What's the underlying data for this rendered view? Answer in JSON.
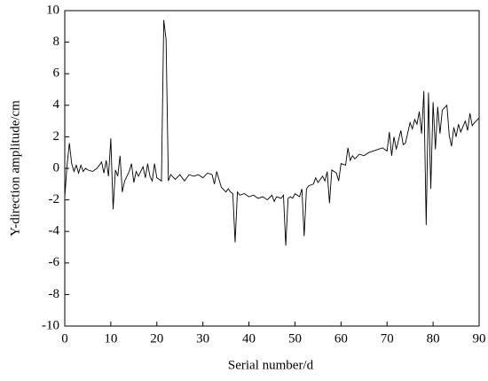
{
  "chart_data": {
    "type": "line",
    "xlabel": "Serial number/d",
    "ylabel": "Y-direction amplitude/cm",
    "color": "#000000",
    "xlim": [
      0,
      90
    ],
    "xticks": [
      0,
      10,
      20,
      30,
      40,
      50,
      60,
      70,
      80,
      90
    ],
    "ylim": [
      -10,
      10
    ],
    "yticks": [
      -10,
      -8,
      -6,
      -4,
      -2,
      0,
      2,
      4,
      6,
      8,
      10
    ],
    "x": [
      0,
      0.5,
      1,
      1.5,
      2,
      2.5,
      3,
      3.5,
      4,
      4.5,
      5,
      6,
      7,
      8,
      8.5,
      9,
      9.5,
      10,
      10.5,
      11,
      11.5,
      12,
      12.5,
      13,
      14,
      14.5,
      15,
      15.5,
      16,
      17,
      17.5,
      18,
      18.5,
      19,
      19.5,
      20,
      21,
      21.5,
      22,
      22.5,
      23,
      24,
      25,
      26,
      27,
      28,
      29,
      30,
      31,
      32,
      32.5,
      33,
      34,
      35,
      35.5,
      36,
      36.5,
      37,
      37.5,
      38,
      39,
      40,
      41,
      42,
      43,
      44,
      45,
      45.5,
      46,
      47,
      47.5,
      48,
      48.5,
      49,
      49.5,
      50,
      51,
      51.5,
      52,
      52.5,
      53,
      54,
      54.5,
      55,
      56,
      56.5,
      57,
      57.5,
      58,
      59,
      59.5,
      60,
      61,
      61.5,
      62,
      62.5,
      63,
      64,
      65,
      66,
      67,
      68,
      69,
      70,
      70.5,
      71,
      71.5,
      72,
      73,
      73.5,
      74,
      75,
      75.5,
      76,
      76.5,
      77,
      77.5,
      78,
      78.5,
      79,
      79.5,
      80,
      80.5,
      81,
      81.5,
      82,
      83,
      83.5,
      84,
      84.5,
      85,
      85.5,
      86,
      87,
      87.5,
      88,
      88.5,
      89,
      90
    ],
    "values": [
      -1.8,
      0.2,
      1.6,
      0.3,
      -0.2,
      0.2,
      -0.3,
      0.2,
      -0.2,
      0,
      -0.1,
      -0.2,
      0,
      0.4,
      -0.3,
      0.5,
      -0.5,
      1.9,
      -2.6,
      -0.1,
      -0.5,
      0.8,
      -1.5,
      -0.8,
      -0.2,
      0.3,
      -0.9,
      -0.2,
      -0.5,
      0.1,
      -0.6,
      0.3,
      -0.5,
      -0.8,
      0.3,
      -0.6,
      -0.8,
      9.4,
      8.2,
      -0.8,
      -0.4,
      -0.7,
      -0.4,
      -0.8,
      -0.4,
      -0.5,
      -0.4,
      -0.6,
      -0.3,
      -0.4,
      -1,
      -0.2,
      -1.2,
      -1.5,
      -1.3,
      -1.5,
      -1.6,
      -4.7,
      -1.5,
      -1.7,
      -1.6,
      -1.8,
      -1.7,
      -1.9,
      -1.8,
      -2,
      -1.7,
      -2.1,
      -1.8,
      -1.9,
      -1.7,
      -4.9,
      -1.9,
      -1.8,
      -1.9,
      -1.6,
      -1.8,
      -1.3,
      -4.3,
      -1.3,
      -1.1,
      -1,
      -0.6,
      -0.9,
      -0.5,
      -0.8,
      -0.2,
      -2.2,
      -0.1,
      -0.3,
      -0.8,
      0.3,
      0.2,
      1.3,
      0.5,
      0.8,
      0.6,
      0.9,
      0.8,
      1,
      1.1,
      1.2,
      1.3,
      1.1,
      2.3,
      0.8,
      2,
      1.2,
      2.4,
      1.5,
      1.6,
      2.9,
      2.5,
      3.1,
      2.8,
      3.6,
      2.2,
      4.9,
      -3.6,
      4.8,
      -1.3,
      4.2,
      1.2,
      3.9,
      2.2,
      3.7,
      4,
      2.1,
      1.4,
      2.6,
      2,
      2.8,
      2.3,
      3,
      2.4,
      3.5,
      2.7,
      2.9,
      3.2
    ]
  }
}
